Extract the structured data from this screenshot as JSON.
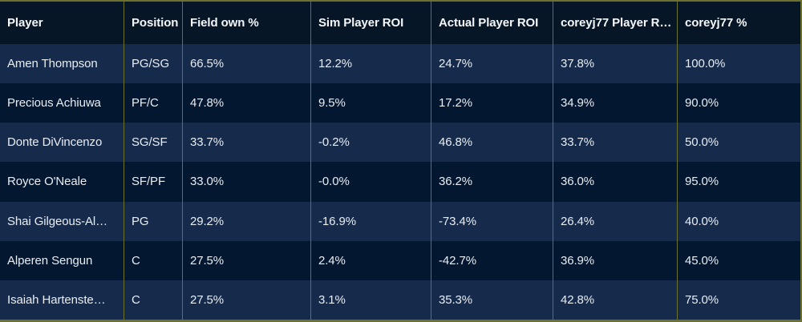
{
  "colors": {
    "grid_line": "#6d7130",
    "header_background": "#071626",
    "row_dark_background": "#041730",
    "row_light_background": "#162b4c",
    "cell_text": "#e9edf2",
    "header_text": "#f5f7fa"
  },
  "table": {
    "columns": [
      {
        "key": "player",
        "label": "Player"
      },
      {
        "key": "position",
        "label": "Position"
      },
      {
        "key": "field-own",
        "label": "Field own %"
      },
      {
        "key": "sim-roi",
        "label": "Sim Player ROI"
      },
      {
        "key": "actual-roi",
        "label": "Actual Player ROI"
      },
      {
        "key": "coreyj77-roi",
        "label": "coreyj77 Player R…"
      },
      {
        "key": "coreyj77-pct",
        "label": "coreyj77 %"
      }
    ],
    "rows": [
      {
        "cells": [
          "Amen Thompson",
          "PG/SG",
          "66.5%",
          "12.2%",
          "24.7%",
          "37.8%",
          "100.0%"
        ]
      },
      {
        "cells": [
          "Precious Achiuwa",
          "PF/C",
          "47.8%",
          "9.5%",
          "17.2%",
          "34.9%",
          "90.0%"
        ]
      },
      {
        "cells": [
          "Donte DiVincenzo",
          "SG/SF",
          "33.7%",
          "-0.2%",
          "46.8%",
          "33.7%",
          "50.0%"
        ]
      },
      {
        "cells": [
          "Royce O'Neale",
          "SF/PF",
          "33.0%",
          "-0.0%",
          "36.2%",
          "36.0%",
          "95.0%"
        ]
      },
      {
        "cells": [
          "Shai Gilgeous-Al…",
          "PG",
          "29.2%",
          "-16.9%",
          "-73.4%",
          "26.4%",
          "40.0%"
        ]
      },
      {
        "cells": [
          "Alperen Sengun",
          "C",
          "27.5%",
          "2.4%",
          "-42.7%",
          "36.9%",
          "45.0%"
        ]
      },
      {
        "cells": [
          "Isaiah Hartenste…",
          "C",
          "27.5%",
          "3.1%",
          "35.3%",
          "42.8%",
          "75.0%"
        ]
      }
    ]
  }
}
